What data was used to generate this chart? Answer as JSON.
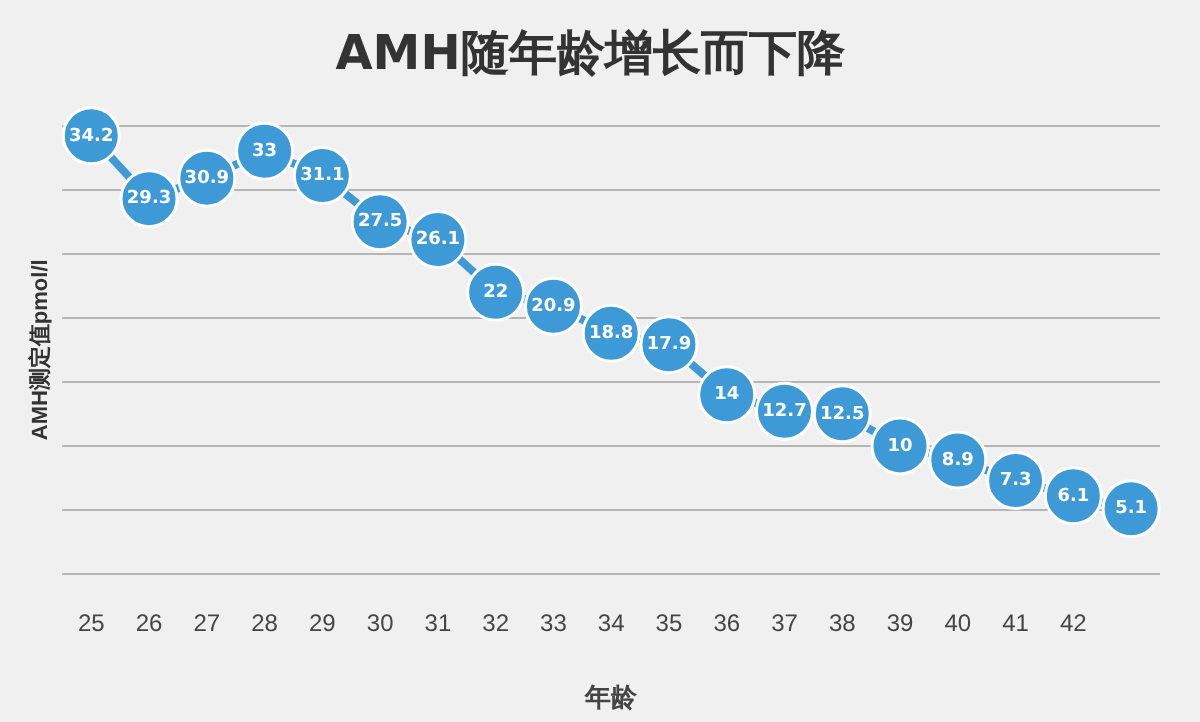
{
  "chart_data": {
    "type": "line",
    "title": "AMH随年龄增长而下降",
    "xlabel": "年龄",
    "ylabel": "AMH测定值pmol/l",
    "categories": [
      "25",
      "26",
      "27",
      "28",
      "29",
      "30",
      "31",
      "32",
      "33",
      "34",
      "35",
      "36",
      "37",
      "38",
      "39",
      "40",
      "41",
      "42",
      null
    ],
    "series": [
      {
        "color": "#3d9ad6",
        "values": [
          34.2,
          29.3,
          30.9,
          33,
          31.1,
          27.5,
          26.1,
          22,
          20.9,
          18.8,
          17.9,
          14,
          12.7,
          12.5,
          10,
          8.9,
          7.3,
          6.1,
          5.1
        ]
      }
    ],
    "ylim": [
      0,
      35
    ],
    "yticks": [
      {
        "value": 0,
        "label": null
      },
      {
        "value": 5,
        "label": null
      },
      {
        "value": 10,
        "label": null
      },
      {
        "value": 15,
        "label": null
      },
      {
        "value": 20,
        "label": null
      },
      {
        "value": 25,
        "label": null
      },
      {
        "value": 30,
        "label": null
      },
      {
        "value": 35,
        "label": null
      }
    ],
    "tick_labels": "x",
    "grid": "y",
    "marker": "circle",
    "line_style": "solid",
    "data_labels": true,
    "legend": false
  }
}
